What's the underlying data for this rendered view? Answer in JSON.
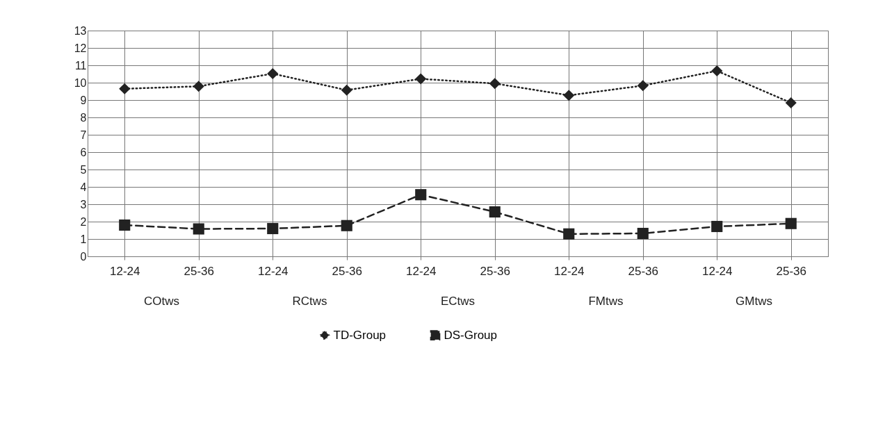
{
  "chart_data": {
    "type": "line",
    "categories": [
      "12-24",
      "25-36",
      "12-24",
      "25-36",
      "12-24",
      "25-36",
      "12-24",
      "25-36",
      "12-24",
      "25-36"
    ],
    "annotations": [
      "COtws",
      "RCtws",
      "ECtws",
      "FMtws",
      "GMtws"
    ],
    "series": [
      {
        "name": "TD-Group",
        "color": "#222222",
        "marker": "diamond",
        "line_style": "dotted",
        "values": [
          9.65,
          9.79,
          10.52,
          9.57,
          10.22,
          9.95,
          9.27,
          9.83,
          10.68,
          8.84
        ]
      },
      {
        "name": "DS-Group",
        "color": "#222222",
        "marker": "square",
        "line_style": "dashed",
        "values": [
          1.8,
          1.58,
          1.6,
          1.77,
          3.55,
          2.56,
          1.29,
          1.32,
          1.72,
          1.89
        ]
      }
    ],
    "ylim": [
      0,
      13
    ],
    "yticks": [
      0,
      1,
      2,
      3,
      4,
      5,
      6,
      7,
      8,
      9,
      10,
      11,
      12,
      13
    ],
    "grid": true,
    "legend": "bottom"
  }
}
